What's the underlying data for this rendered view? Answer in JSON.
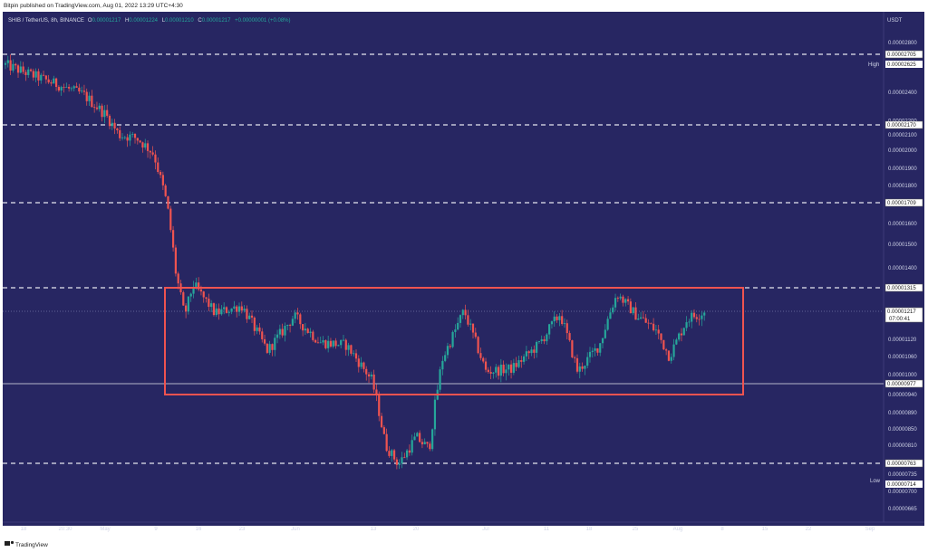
{
  "header": {
    "published_line": "Bitpin published on TradingView.com, Aug 01, 2022 13:29 UTC+4:30",
    "symbol_line": "SHIB / TetherUS, 8h, BINANCE",
    "ohlc": {
      "o_label": "O",
      "o_value": "0.00001217",
      "h_label": "H",
      "h_value": "0.00001224",
      "l_label": "L",
      "l_value": "0.00001210",
      "c_label": "C",
      "c_value": "0.00001217",
      "change": "+0.00000001 (+0.08%)"
    }
  },
  "footer": {
    "brand": "TradingView"
  },
  "price_scale": {
    "currency": "USDT",
    "high_label": "High",
    "low_label": "Low",
    "countdown": "07:00:41"
  },
  "colors": {
    "background": "#272662",
    "up": "#26a69a",
    "down": "#ef5350",
    "box": "#ef5350",
    "level_line": "#e6e6ee"
  },
  "chart_data": {
    "type": "candlestick",
    "title": "",
    "x_tick_labels": [
      "18",
      "20:30",
      "May",
      "9",
      "16",
      "23",
      "Jun",
      "13",
      "20",
      "Jul",
      "11",
      "18",
      "25",
      "Aug",
      "8",
      "15",
      "22",
      "Sep"
    ],
    "y_tick_labels": [
      "0.00002800",
      "0.00002400",
      "0.00002200",
      "0.00002100",
      "0.00002000",
      "0.00001900",
      "0.00001800",
      "0.00001600",
      "0.00001500",
      "0.00001400",
      "0.00001120",
      "0.00001060",
      "0.00001000",
      "0.00000940",
      "0.00000890",
      "0.00000850",
      "0.00000810",
      "0.00000735",
      "0.00000700",
      "0.00000665"
    ],
    "horizontal_levels": [
      "0.00002705",
      "0.00002170",
      "0.00001709",
      "0.00001315",
      "0.00000977",
      "0.00000763"
    ],
    "current_price": "0.00001217",
    "high_price": "0.00002625",
    "low_price": "0.00000714",
    "range_box": {
      "top": 1.315e-05,
      "bottom": 9.4e-06,
      "start": "Jun 9",
      "end": "Aug 11"
    },
    "path_points": [
      {
        "x": 0.0,
        "p": 2.62e-05
      },
      {
        "x": 0.03,
        "p": 2.54e-05
      },
      {
        "x": 0.06,
        "p": 2.46e-05
      },
      {
        "x": 0.09,
        "p": 2.38e-05
      },
      {
        "x": 0.115,
        "p": 2.24e-05
      },
      {
        "x": 0.13,
        "p": 2.1e-05
      },
      {
        "x": 0.15,
        "p": 2.08e-05
      },
      {
        "x": 0.17,
        "p": 1.98e-05
      },
      {
        "x": 0.185,
        "p": 1.7e-05
      },
      {
        "x": 0.195,
        "p": 1.38e-05
      },
      {
        "x": 0.205,
        "p": 1.2e-05
      },
      {
        "x": 0.215,
        "p": 1.33e-05
      },
      {
        "x": 0.24,
        "p": 1.21e-05
      },
      {
        "x": 0.27,
        "p": 1.24e-05
      },
      {
        "x": 0.3,
        "p": 1.08e-05
      },
      {
        "x": 0.33,
        "p": 1.2e-05
      },
      {
        "x": 0.36,
        "p": 1.11e-05
      },
      {
        "x": 0.39,
        "p": 1.1e-05
      },
      {
        "x": 0.42,
        "p": 9.8e-06
      },
      {
        "x": 0.435,
        "p": 8.1e-06
      },
      {
        "x": 0.45,
        "p": 7.6e-06
      },
      {
        "x": 0.47,
        "p": 8.3e-06
      },
      {
        "x": 0.485,
        "p": 8e-06
      },
      {
        "x": 0.5,
        "p": 1.05e-05
      },
      {
        "x": 0.525,
        "p": 1.22e-05
      },
      {
        "x": 0.55,
        "p": 1.01e-05
      },
      {
        "x": 0.58,
        "p": 1.02e-05
      },
      {
        "x": 0.61,
        "p": 1.1e-05
      },
      {
        "x": 0.635,
        "p": 1.21e-05
      },
      {
        "x": 0.655,
        "p": 1.01e-05
      },
      {
        "x": 0.68,
        "p": 1.1e-05
      },
      {
        "x": 0.7,
        "p": 1.29e-05
      },
      {
        "x": 0.72,
        "p": 1.21e-05
      },
      {
        "x": 0.745,
        "p": 1.15e-05
      },
      {
        "x": 0.76,
        "p": 1.06e-05
      },
      {
        "x": 0.78,
        "p": 1.19e-05
      },
      {
        "x": 0.8,
        "p": 1.217e-05
      }
    ]
  }
}
